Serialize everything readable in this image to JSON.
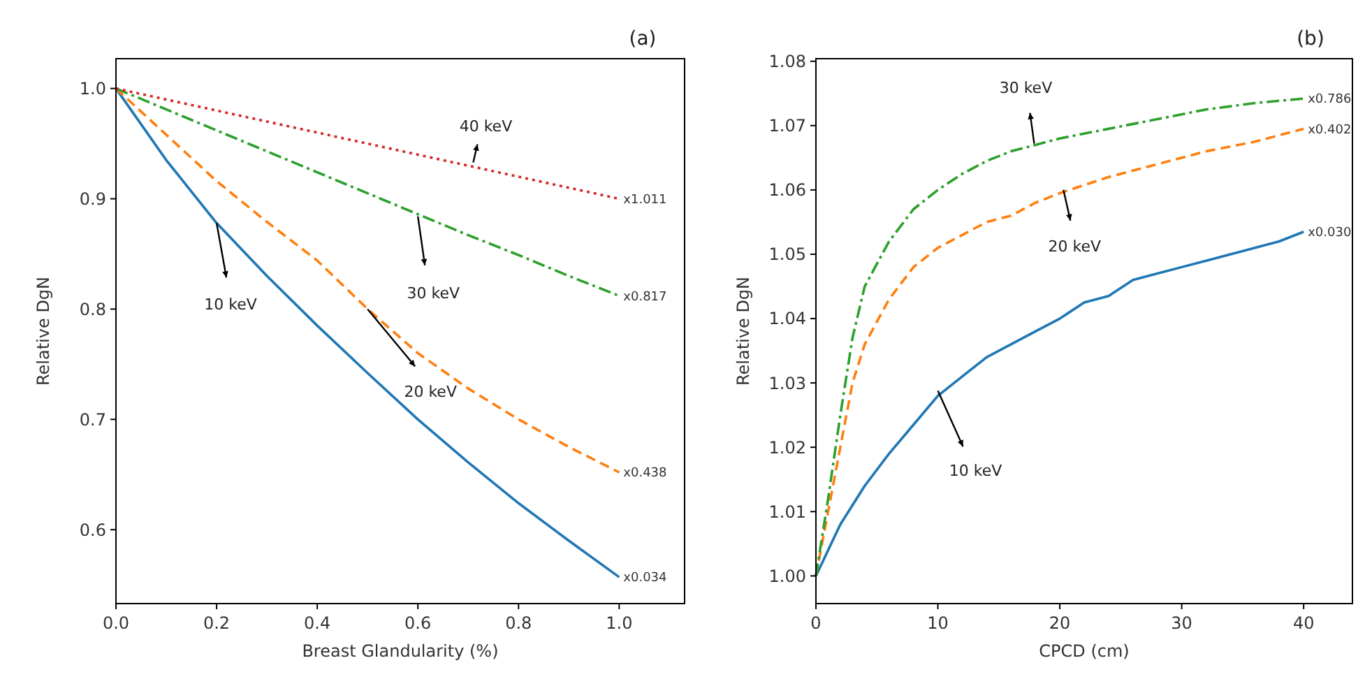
{
  "chart_data": [
    {
      "type": "line",
      "title": "(a)",
      "xlabel": "Breast Glandularity (%)",
      "ylabel": "Relative DgN",
      "xlim": [
        0,
        1.13
      ],
      "ylim": [
        0.533,
        1.027
      ],
      "xticks": [
        {
          "value": 0,
          "label": "0.0"
        },
        0.2,
        0.4,
        0.6,
        0.8,
        {
          "value": 1,
          "label": "1.0"
        }
      ],
      "yticks": [
        0.6,
        0.7,
        0.8,
        0.9,
        {
          "value": 1,
          "label": "1.0"
        }
      ],
      "grid": false,
      "marker": "none",
      "x": [
        0,
        0.1,
        0.2,
        0.3,
        0.4,
        0.5,
        0.6,
        0.7,
        0.8,
        0.9,
        1.0
      ],
      "series": [
        {
          "color": "#1f77b4",
          "line_style": "solid",
          "values": [
            1.0,
            0.935,
            0.878,
            0.83,
            0.785,
            0.742,
            0.7,
            0.661,
            0.624,
            0.59,
            0.557
          ]
        },
        {
          "color": "#ff7f0e",
          "line_style": "dashed",
          "values": [
            1.0,
            0.958,
            0.916,
            0.879,
            0.844,
            0.8,
            0.76,
            0.728,
            0.7,
            0.675,
            0.652
          ]
        },
        {
          "color": "#2ca02c",
          "line_style": "dashdot",
          "values": [
            1.0,
            0.981,
            0.962,
            0.943,
            0.924,
            0.905,
            0.886,
            0.867,
            0.849,
            0.83,
            0.812
          ]
        },
        {
          "color": "#d62728",
          "line_style": "dotted",
          "values": [
            1.0,
            0.99,
            0.98,
            0.97,
            0.96,
            0.95,
            0.94,
            0.93,
            0.92,
            0.91,
            0.9
          ]
        }
      ],
      "annotations": [
        {
          "text": "10 keV",
          "x": 0.2,
          "y": 0.878
        },
        {
          "text": "20 keV",
          "x": 0.5,
          "y": 0.8
        },
        {
          "text": "30 keV",
          "x": 0.6,
          "y": 0.884
        },
        {
          "text": "40 keV",
          "x": 0.71,
          "y": 0.933
        },
        {
          "text": "x0.034",
          "x": 1.0,
          "y": 0.557
        },
        {
          "text": "x0.438",
          "x": 1.0,
          "y": 0.652
        },
        {
          "text": "x0.817",
          "x": 1.0,
          "y": 0.812
        },
        {
          "text": "x1.011",
          "x": 1.0,
          "y": 0.9
        }
      ]
    },
    {
      "type": "line",
      "title": "(b)",
      "xlabel": "CPCD (cm)",
      "ylabel": "Relative DgN",
      "xlim": [
        0,
        44
      ],
      "ylim": [
        0.9957,
        1.0804
      ],
      "xticks": [
        0,
        10,
        20,
        30,
        40
      ],
      "yticks": [
        {
          "value": 1,
          "label": "1.00"
        },
        1.01,
        1.02,
        1.03,
        1.04,
        1.05,
        1.06,
        1.07,
        1.08
      ],
      "grid": false,
      "marker": "none",
      "series": [
        {
          "color": "#1f77b4",
          "line_style": "solid",
          "x": [
            0,
            2,
            4,
            6,
            8,
            10,
            12,
            14,
            16,
            18,
            20,
            22,
            24,
            26,
            28,
            30,
            32,
            34,
            36,
            38,
            40
          ],
          "values": [
            1.0,
            1.008,
            1.014,
            1.019,
            1.0235,
            1.028,
            1.031,
            1.034,
            1.036,
            1.038,
            1.04,
            1.0425,
            1.0435,
            1.046,
            1.047,
            1.048,
            1.049,
            1.05,
            1.051,
            1.052,
            1.0535
          ]
        },
        {
          "color": "#ff7f0e",
          "line_style": "dashed",
          "x": [
            0,
            1,
            2,
            3,
            4,
            6,
            8,
            10,
            12,
            14,
            16,
            18,
            20,
            24,
            28,
            32,
            36,
            40
          ],
          "values": [
            1.0,
            1.01,
            1.02,
            1.03,
            1.036,
            1.043,
            1.048,
            1.051,
            1.053,
            1.055,
            1.056,
            1.058,
            1.0595,
            1.062,
            1.064,
            1.066,
            1.0675,
            1.0695
          ]
        },
        {
          "color": "#2ca02c",
          "line_style": "dashdot",
          "x": [
            0,
            1,
            2,
            3,
            4,
            6,
            8,
            10,
            12,
            14,
            16,
            18,
            20,
            24,
            28,
            32,
            36,
            40
          ],
          "values": [
            1.0,
            1.012,
            1.025,
            1.037,
            1.045,
            1.052,
            1.057,
            1.06,
            1.0625,
            1.0645,
            1.066,
            1.067,
            1.068,
            1.0695,
            1.071,
            1.0725,
            1.0735,
            1.0742
          ]
        }
      ],
      "annotations": [
        {
          "text": "10 keV",
          "x": 10,
          "y": 1.0288
        },
        {
          "text": "20 keV",
          "x": 20.3,
          "y": 1.06
        },
        {
          "text": "30 keV",
          "x": 17.9,
          "y": 1.0672
        },
        {
          "text": "x0.030",
          "x": 40,
          "y": 1.0535
        },
        {
          "text": "x0.402",
          "x": 40,
          "y": 1.0695
        },
        {
          "text": "x0.786",
          "x": 40,
          "y": 1.0742
        }
      ]
    }
  ]
}
